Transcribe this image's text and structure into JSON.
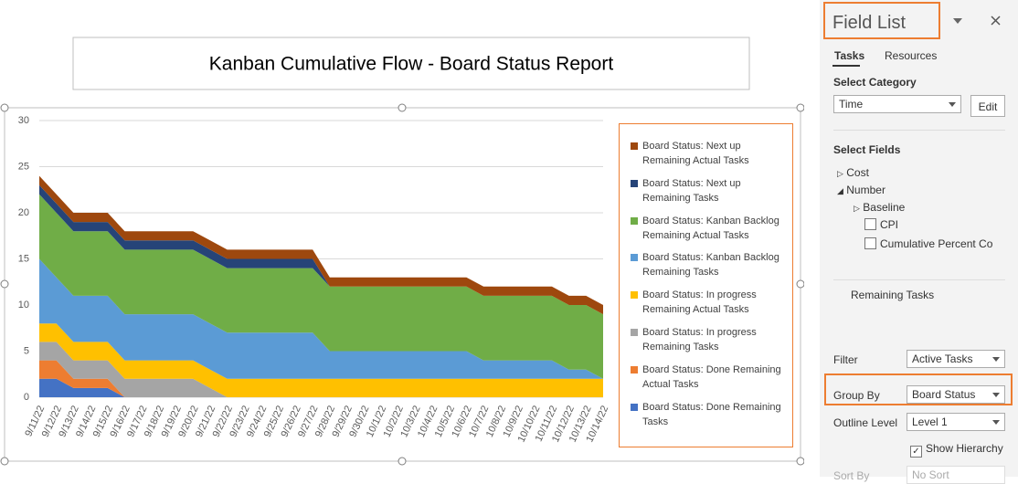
{
  "chart_data": {
    "type": "stacked-area",
    "title": "Kanban Cumulative Flow - Board Status Report",
    "categories": [
      "9/11/22",
      "9/12/22",
      "9/13/22",
      "9/14/22",
      "9/15/22",
      "9/16/22",
      "9/17/22",
      "9/18/22",
      "9/19/22",
      "9/20/22",
      "9/21/22",
      "9/22/22",
      "9/23/22",
      "9/24/22",
      "9/25/22",
      "9/26/22",
      "9/27/22",
      "9/28/22",
      "9/29/22",
      "9/30/22",
      "10/1/22",
      "10/2/22",
      "10/3/22",
      "10/4/22",
      "10/5/22",
      "10/6/22",
      "10/7/22",
      "10/8/22",
      "10/9/22",
      "10/10/22",
      "10/11/22",
      "10/12/22",
      "10/13/22",
      "10/14/22"
    ],
    "ylim": [
      0,
      30
    ],
    "yticks": [
      0,
      5,
      10,
      15,
      20,
      25,
      30
    ],
    "grid": true,
    "series": [
      {
        "name": "Board Status: Done Remaining Tasks",
        "color": "#4472c4",
        "values": [
          2,
          2,
          1,
          1,
          1,
          0,
          0,
          0,
          0,
          0,
          0,
          0,
          0,
          0,
          0,
          0,
          0,
          0,
          0,
          0,
          0,
          0,
          0,
          0,
          0,
          0,
          0,
          0,
          0,
          0,
          0,
          0,
          0,
          0
        ]
      },
      {
        "name": "Board Status: Done Remaining Actual Tasks",
        "color": "#ed7d31",
        "values": [
          2,
          2,
          1,
          1,
          1,
          0,
          0,
          0,
          0,
          0,
          0,
          0,
          0,
          0,
          0,
          0,
          0,
          0,
          0,
          0,
          0,
          0,
          0,
          0,
          0,
          0,
          0,
          0,
          0,
          0,
          0,
          0,
          0,
          0
        ]
      },
      {
        "name": "Board Status: In progress Remaining Tasks",
        "color": "#a5a5a5",
        "values": [
          2,
          2,
          2,
          2,
          2,
          2,
          2,
          2,
          2,
          2,
          1,
          0,
          0,
          0,
          0,
          0,
          0,
          0,
          0,
          0,
          0,
          0,
          0,
          0,
          0,
          0,
          0,
          0,
          0,
          0,
          0,
          0,
          0,
          0
        ]
      },
      {
        "name": "Board Status: In progress Remaining Actual Tasks",
        "color": "#ffc000",
        "values": [
          2,
          2,
          2,
          2,
          2,
          2,
          2,
          2,
          2,
          2,
          2,
          2,
          2,
          2,
          2,
          2,
          2,
          2,
          2,
          2,
          2,
          2,
          2,
          2,
          2,
          2,
          2,
          2,
          2,
          2,
          2,
          2,
          2,
          2
        ]
      },
      {
        "name": "Board Status: Kanban Backlog Remaining Tasks",
        "color": "#5b9bd5",
        "values": [
          7,
          5,
          5,
          5,
          5,
          5,
          5,
          5,
          5,
          5,
          5,
          5,
          5,
          5,
          5,
          5,
          5,
          3,
          3,
          3,
          3,
          3,
          3,
          3,
          3,
          3,
          2,
          2,
          2,
          2,
          2,
          1,
          1,
          0
        ]
      },
      {
        "name": "Board Status: Kanban Backlog Remaining Actual Tasks",
        "color": "#70ad47",
        "values": [
          7,
          7,
          7,
          7,
          7,
          7,
          7,
          7,
          7,
          7,
          7,
          7,
          7,
          7,
          7,
          7,
          7,
          7,
          7,
          7,
          7,
          7,
          7,
          7,
          7,
          7,
          7,
          7,
          7,
          7,
          7,
          7,
          7,
          7
        ]
      },
      {
        "name": "Board Status: Next up Remaining Tasks",
        "color": "#264478",
        "values": [
          1,
          1,
          1,
          1,
          1,
          1,
          1,
          1,
          1,
          1,
          1,
          1,
          1,
          1,
          1,
          1,
          1,
          0,
          0,
          0,
          0,
          0,
          0,
          0,
          0,
          0,
          0,
          0,
          0,
          0,
          0,
          0,
          0,
          0
        ]
      },
      {
        "name": "Board Status: Next up Remaining Actual Tasks",
        "color": "#9e480e",
        "values": [
          1,
          1,
          1,
          1,
          1,
          1,
          1,
          1,
          1,
          1,
          1,
          1,
          1,
          1,
          1,
          1,
          1,
          1,
          1,
          1,
          1,
          1,
          1,
          1,
          1,
          1,
          1,
          1,
          1,
          1,
          1,
          1,
          1,
          1
        ]
      }
    ]
  },
  "panel": {
    "title": "Field List",
    "tabs": [
      "Tasks",
      "Resources"
    ],
    "category_label": "Select Category",
    "category": "Time",
    "edit": "Edit",
    "fields_label": "Select Fields",
    "fields": [
      "Cost",
      "Number",
      "Baseline",
      "CPI",
      "Cumulative Percent Co"
    ],
    "selected_field": "Remaining Tasks",
    "filter_label": "Filter",
    "filter": "Active Tasks",
    "group_label": "Group By",
    "group": "Board Status",
    "outline_label": "Outline Level",
    "outline": "Level 1",
    "hierarchy": "Show Hierarchy",
    "sort_label": "Sort By",
    "sort": "No Sort"
  }
}
